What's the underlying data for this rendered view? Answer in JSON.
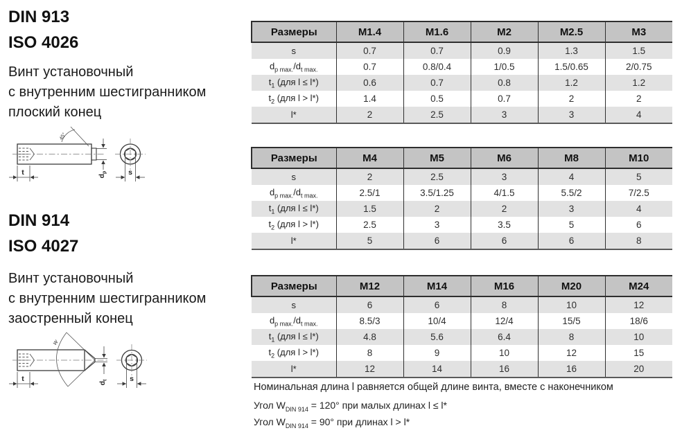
{
  "left_panel": {
    "standard_block_1": {
      "line1": "DIN 913",
      "line2": "ISO 4026"
    },
    "description_1": [
      "Винт установочный",
      "с внутренним шестигранником",
      "плоский конец"
    ],
    "standard_block_2": {
      "line1": "DIN 914",
      "line2": "ISO 4027"
    },
    "description_2": [
      "Винт установочный",
      "с внутренним шестигранником",
      "заостренный конец"
    ]
  },
  "drawings": {
    "flat_point": {
      "chamfer_angle": "45°",
      "dim_t": "t",
      "dim_d_main": "d",
      "dim_d_sub": "p",
      "dim_s": "s"
    },
    "cone_point": {
      "angle": "w",
      "dim_t": "t",
      "dim_d_main": "d",
      "dim_d_sub": "t",
      "dim_s": "s"
    }
  },
  "tables": [
    {
      "name": "sizes-M1.4-M3",
      "header": [
        "Размеры",
        "M1.4",
        "M1.6",
        "M2",
        "M2.5",
        "M3"
      ],
      "rows": [
        {
          "label": [
            {
              "t": "s"
            }
          ],
          "values": [
            "0.7",
            "0.7",
            "0.9",
            "1.3",
            "1.5"
          ]
        },
        {
          "label": [
            {
              "t": "d"
            },
            {
              "t": "p max.",
              "sub": true
            },
            {
              "t": "/d"
            },
            {
              "t": "t max.",
              "sub": true
            }
          ],
          "values": [
            "0.7",
            "0.8/0.4",
            "1/0.5",
            "1.5/0.65",
            "2/0.75"
          ]
        },
        {
          "label": [
            {
              "t": "t"
            },
            {
              "t": "1",
              "sub": true
            },
            {
              "t": " (для l ≤ l*)"
            }
          ],
          "values": [
            "0.6",
            "0.7",
            "0.8",
            "1.2",
            "1.2"
          ]
        },
        {
          "label": [
            {
              "t": "t"
            },
            {
              "t": "2",
              "sub": true
            },
            {
              "t": " (для l > l*)"
            }
          ],
          "values": [
            "1.4",
            "0.5",
            "0.7",
            "2",
            "2"
          ]
        },
        {
          "label": [
            {
              "t": "l*"
            }
          ],
          "values": [
            "2",
            "2.5",
            "3",
            "3",
            "4"
          ]
        }
      ]
    },
    {
      "name": "sizes-M4-M10",
      "header": [
        "Размеры",
        "M4",
        "M5",
        "M6",
        "M8",
        "M10"
      ],
      "rows": [
        {
          "label": [
            {
              "t": "s"
            }
          ],
          "values": [
            "2",
            "2.5",
            "3",
            "4",
            "5"
          ]
        },
        {
          "label": [
            {
              "t": "d"
            },
            {
              "t": "p max.",
              "sub": true
            },
            {
              "t": "/d"
            },
            {
              "t": "t max.",
              "sub": true
            }
          ],
          "values": [
            "2.5/1",
            "3.5/1.25",
            "4/1.5",
            "5.5/2",
            "7/2.5"
          ]
        },
        {
          "label": [
            {
              "t": "t"
            },
            {
              "t": "1",
              "sub": true
            },
            {
              "t": " (для l ≤ l*)"
            }
          ],
          "values": [
            "1.5",
            "2",
            "2",
            "3",
            "4"
          ]
        },
        {
          "label": [
            {
              "t": "t"
            },
            {
              "t": "2",
              "sub": true
            },
            {
              "t": " (для l > l*)"
            }
          ],
          "values": [
            "2.5",
            "3",
            "3.5",
            "5",
            "6"
          ]
        },
        {
          "label": [
            {
              "t": "l*"
            }
          ],
          "values": [
            "5",
            "6",
            "6",
            "6",
            "8"
          ]
        }
      ]
    },
    {
      "name": "sizes-M12-M24",
      "header": [
        "Размеры",
        "M12",
        "M14",
        "M16",
        "M20",
        "M24"
      ],
      "rows": [
        {
          "label": [
            {
              "t": "s"
            }
          ],
          "values": [
            "6",
            "6",
            "8",
            "10",
            "12"
          ]
        },
        {
          "label": [
            {
              "t": "d"
            },
            {
              "t": "p max.",
              "sub": true
            },
            {
              "t": "/d"
            },
            {
              "t": "t max.",
              "sub": true
            }
          ],
          "values": [
            "8.5/3",
            "10/4",
            "12/4",
            "15/5",
            "18/6"
          ]
        },
        {
          "label": [
            {
              "t": "t"
            },
            {
              "t": "1",
              "sub": true
            },
            {
              "t": " (для l ≤ l*)"
            }
          ],
          "values": [
            "4.8",
            "5.6",
            "6.4",
            "8",
            "10"
          ]
        },
        {
          "label": [
            {
              "t": "t"
            },
            {
              "t": "2",
              "sub": true
            },
            {
              "t": " (для l > l*)"
            }
          ],
          "values": [
            "8",
            "9",
            "10",
            "12",
            "15"
          ]
        },
        {
          "label": [
            {
              "t": "l*"
            }
          ],
          "values": [
            "12",
            "14",
            "16",
            "16",
            "20"
          ]
        }
      ]
    }
  ],
  "notes": {
    "length_note": "Номинальная длина l равняется общей длине винта, вместе с наконечником",
    "angle_note_1": {
      "pre": "Угол W",
      "sub": "DIN 914",
      "post": " = 120° при малых длинах l ≤ l*"
    },
    "angle_note_2": {
      "pre": "Угол W",
      "sub": "DIN 914",
      "post": " = 90° при длинах l > l*"
    }
  },
  "colors": {
    "table_header_bg": "#c4c4c4",
    "table_alt_row_bg": "#e2e2e2",
    "table_border": "#2e2e2e"
  }
}
